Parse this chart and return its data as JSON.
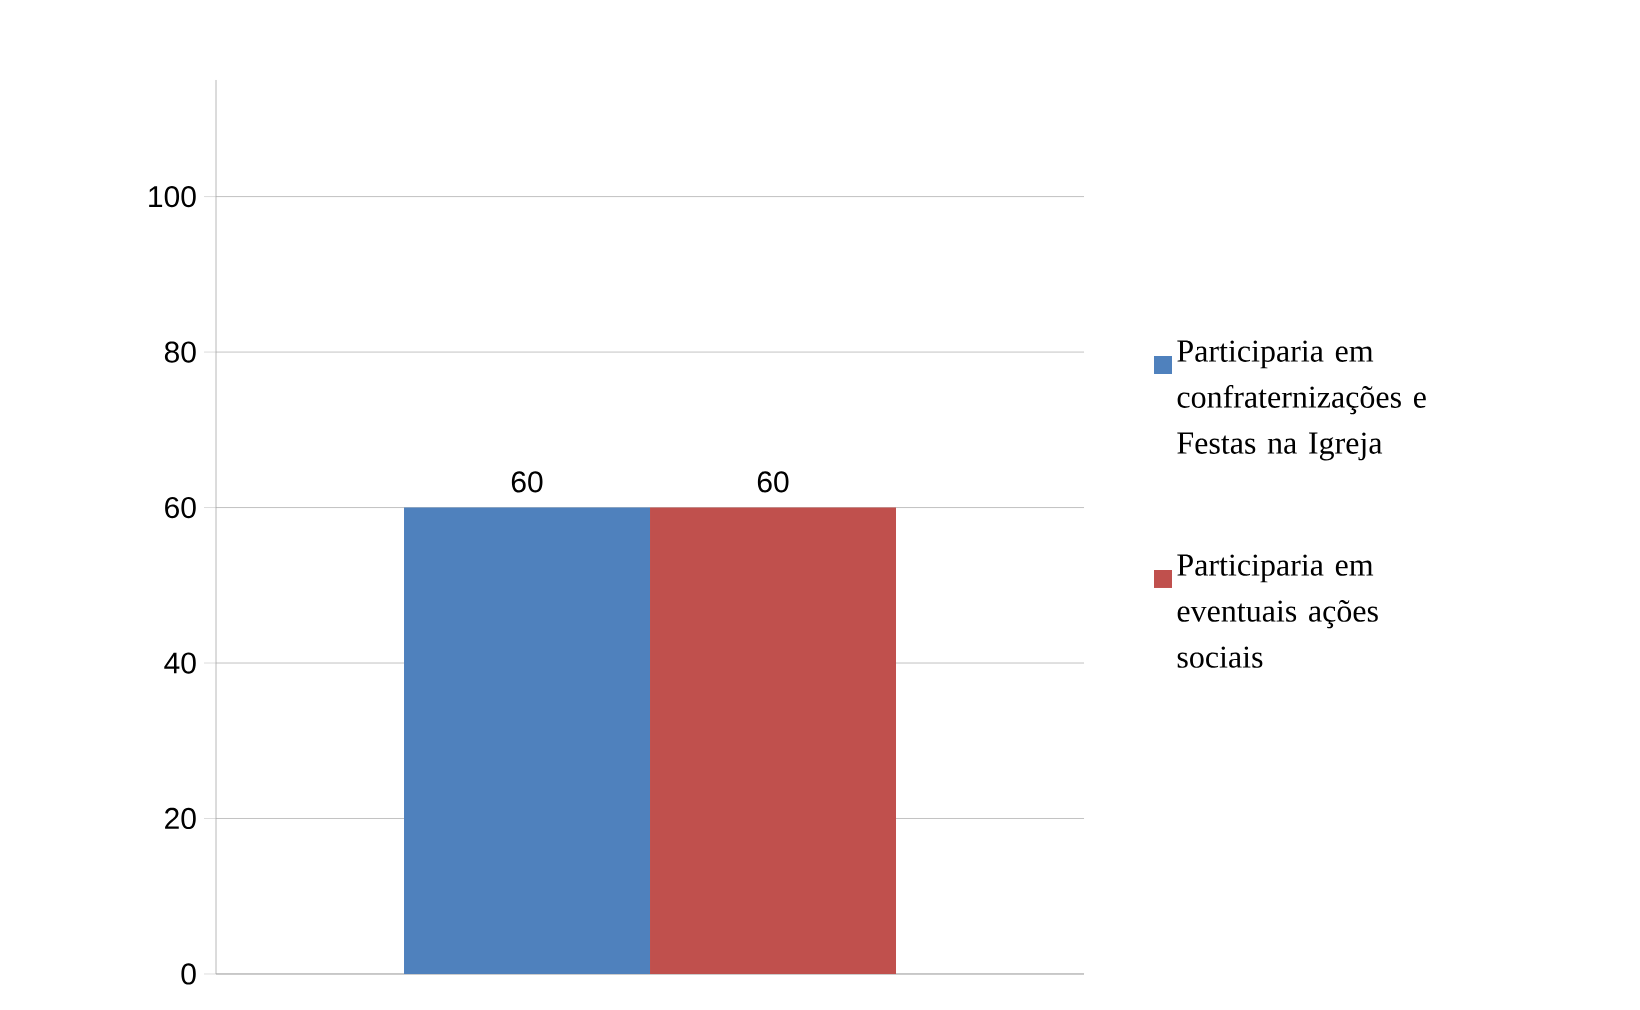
{
  "chart_data": {
    "type": "bar",
    "categories": [
      null
    ],
    "series": [
      {
        "name": "Participaria em confraternizações e Festas na Igreja",
        "color": "#4f81bd",
        "values": [
          60
        ]
      },
      {
        "name": "Participaria em eventuais ações sociais",
        "color": "#c0504d",
        "values": [
          60
        ]
      }
    ],
    "ylim": [
      0,
      115
    ],
    "yticks": [
      0,
      20,
      40,
      60,
      80,
      100
    ],
    "grid": "y",
    "data_labels": true,
    "legend": "right"
  }
}
